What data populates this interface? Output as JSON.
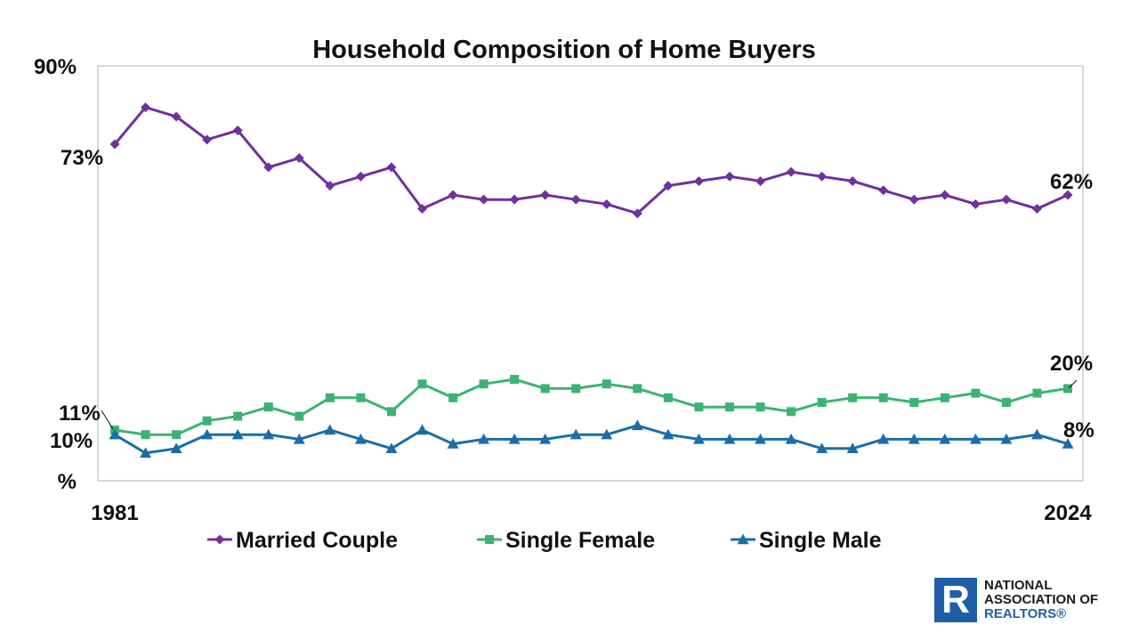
{
  "chart_data": {
    "type": "line",
    "title": "Household Composition of Home Buyers",
    "xlabel": "",
    "ylabel": "",
    "x_tick_labels": [
      "1981",
      "2024"
    ],
    "y_tick_labels": [
      "90%",
      "%"
    ],
    "ylim": [
      0,
      90
    ],
    "grid": false,
    "legend_position": "bottom",
    "series": [
      {
        "name": "Married Couple",
        "color": "#7030a0",
        "marker": "diamond",
        "values": [
          73,
          81,
          79,
          74,
          76,
          68,
          70,
          64,
          66,
          68,
          59,
          62,
          61,
          61,
          62,
          61,
          60,
          58,
          64,
          65,
          66,
          65,
          67,
          66,
          65,
          63,
          61,
          62,
          60,
          61,
          59,
          62
        ]
      },
      {
        "name": "Single Female",
        "color": "#3cb371",
        "marker": "square",
        "values": [
          11,
          10,
          10,
          13,
          14,
          16,
          14,
          18,
          18,
          15,
          21,
          18,
          21,
          22,
          20,
          20,
          21,
          20,
          18,
          16,
          16,
          16,
          15,
          17,
          18,
          18,
          17,
          18,
          19,
          17,
          19,
          20
        ]
      },
      {
        "name": "Single Male",
        "color": "#1a6ea8",
        "marker": "triangle",
        "values": [
          10,
          6,
          7,
          10,
          10,
          10,
          9,
          11,
          9,
          7,
          11,
          8,
          9,
          9,
          9,
          10,
          10,
          12,
          10,
          9,
          9,
          9,
          9,
          7,
          7,
          9,
          9,
          9,
          9,
          9,
          10,
          8
        ]
      }
    ],
    "annotations": {
      "start_labels": [
        "73%",
        "11%",
        "10%"
      ],
      "end_labels": [
        "62%",
        "20%",
        "8%"
      ]
    }
  },
  "logo": {
    "letter": "R",
    "line1": "NATIONAL",
    "line2": "ASSOCIATION OF",
    "line3": "REALTORS®"
  }
}
